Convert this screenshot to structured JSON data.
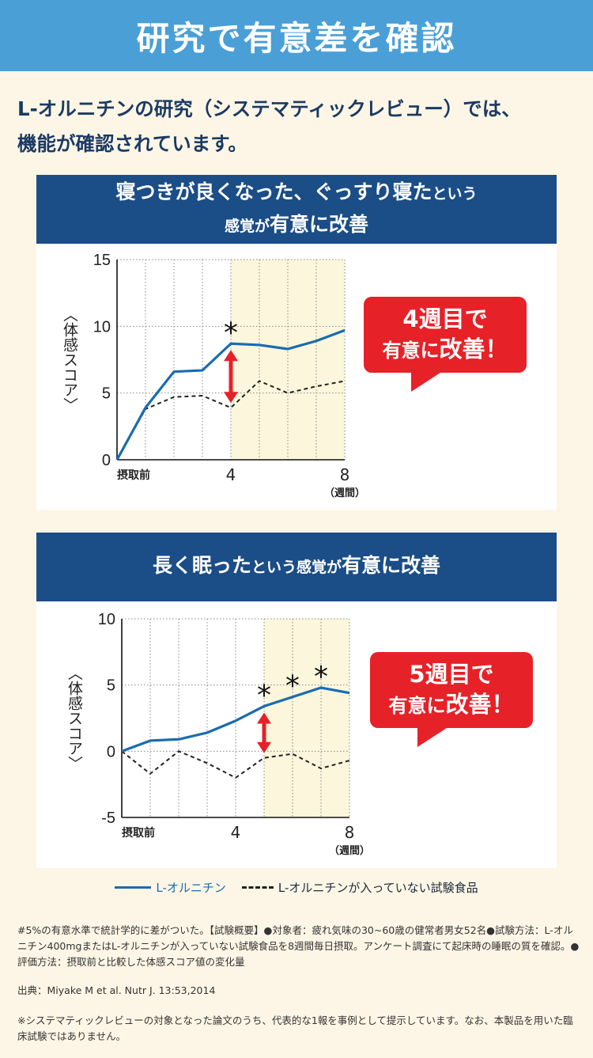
{
  "banner": {
    "title": "研究で有意差を確認"
  },
  "intro": {
    "line1": "L-オルニチンの研究（システマティックレビュー）では、",
    "line2": "機能が確認されています。"
  },
  "colors": {
    "banner": "#4a9fd6",
    "header": "#1b4d87",
    "accent": "#e62128",
    "series_main": "#1a6bb2",
    "series_control": "#222222",
    "highlight": "#fbf6dc"
  },
  "panel1": {
    "title_line1_big": "寝つきが良くなった、ぐっすり寝た",
    "title_line1_small": "という",
    "title_line2_small": "感覚が",
    "title_line2_big": "有意に改善",
    "callout_big": "4",
    "callout_line1": "週目で",
    "callout_line2_a": "有意に",
    "callout_line2_b": "改善！"
  },
  "panel2": {
    "title_big1": "長く眠った",
    "title_small": "という感覚が",
    "title_big2": "有意に改善",
    "callout_big": "5",
    "callout_line1": "週目で",
    "callout_line2_a": "有意に",
    "callout_line2_b": "改善！"
  },
  "chart_data": [
    {
      "type": "line",
      "title": "寝つきが良くなった、ぐっすり寝たという感覚が有意に改善",
      "ylabel": "〈体感スコア〉",
      "xlabel": "（週間）",
      "x": [
        0,
        1,
        2,
        3,
        4,
        5,
        6,
        7,
        8
      ],
      "x_tick_labels": {
        "0": "摂取前",
        "4": "4",
        "8": "8"
      },
      "ylim": [
        0,
        15
      ],
      "yticks": [
        0,
        5,
        10,
        15
      ],
      "highlight_from_x": 4,
      "series": [
        {
          "name": "L-オルニチン",
          "values": [
            0,
            3.9,
            6.6,
            6.7,
            8.7,
            8.6,
            8.3,
            8.9,
            9.7
          ]
        },
        {
          "name": "L-オルニチンが入っていない試験食品",
          "values": [
            0,
            3.8,
            4.7,
            4.8,
            3.9,
            5.9,
            5.0,
            5.5,
            5.9
          ]
        }
      ],
      "significance_markers": [
        {
          "x": 4,
          "label": "*"
        }
      ],
      "grid": "vertical"
    },
    {
      "type": "line",
      "title": "長く眠ったという感覚が有意に改善",
      "ylabel": "〈体感スコア〉",
      "xlabel": "（週間）",
      "x": [
        0,
        1,
        2,
        3,
        4,
        5,
        6,
        7,
        8
      ],
      "x_tick_labels": {
        "0": "摂取前",
        "4": "4",
        "8": "8"
      },
      "ylim": [
        -5,
        10
      ],
      "yticks": [
        -5,
        0,
        5,
        10
      ],
      "highlight_from_x": 5,
      "series": [
        {
          "name": "L-オルニチン",
          "values": [
            0,
            0.8,
            0.9,
            1.4,
            2.3,
            3.4,
            4.1,
            4.8,
            4.4
          ]
        },
        {
          "name": "L-オルニチンが入っていない試験食品",
          "values": [
            0,
            -1.7,
            0,
            -0.9,
            -2.0,
            -0.5,
            -0.2,
            -1.3,
            -0.7
          ]
        }
      ],
      "significance_markers": [
        {
          "x": 5,
          "label": "*"
        },
        {
          "x": 6,
          "label": "*"
        },
        {
          "x": 7,
          "label": "*"
        }
      ],
      "grid": "vertical"
    }
  ],
  "axis": {
    "ylabel_vertical": "〈体感スコア〉",
    "x_start_label": "摂取前",
    "x_mid_label": "4",
    "x_end_label": "8",
    "x_unit": "（週間）",
    "sig_mark": "*"
  },
  "legend": {
    "main": "L-オルニチン",
    "control": "L-オルニチンが入っていない試験食品"
  },
  "notes": {
    "summary": "#5%の有意水準で統計学的に差がついた。【試験概要】●対象者：疲れ気味の30~60歳の健常者男女52名●試験方法：L-オルニチン400mgまたはL-オルニチンが入っていない試験食品を8週間毎日摂取。アンケート調査にて起床時の睡眠の質を確認。●評価方法：摂取前と比較した体感スコア値の変化量",
    "source": "出典：Miyake M et al. Nutr J. 13:53,2014",
    "disclaimer": "※システマティックレビューの対象となった論文のうち、代表的な1報を事例として提示しています。なお、本製品を用いた臨床試験ではありません。"
  }
}
